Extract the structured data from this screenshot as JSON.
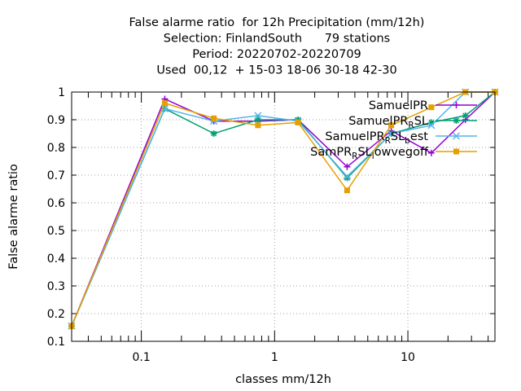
{
  "chart_data": {
    "type": "line",
    "title_lines": [
      "False alarme ratio  for 12h Precipitation (mm/12h)",
      "Selection: FinlandSouth      79 stations",
      "Period: 20220702-20220709",
      "Used  00,12  + 15-03 18-06 30-18 42-30"
    ],
    "xlabel": "classes mm/12h",
    "ylabel": "False alarme ratio",
    "x_scale": "log",
    "xlim": [
      0.03,
      45
    ],
    "ylim": [
      0.1,
      1.0
    ],
    "x_ticks": [
      {
        "v": 0.1,
        "label": "0.1"
      },
      {
        "v": 1,
        "label": "1"
      },
      {
        "v": 10,
        "label": "10"
      }
    ],
    "y_ticks": [
      {
        "v": 0.1,
        "label": "0.1"
      },
      {
        "v": 0.2,
        "label": "0.2"
      },
      {
        "v": 0.3,
        "label": "0.3"
      },
      {
        "v": 0.4,
        "label": "0.4"
      },
      {
        "v": 0.5,
        "label": "0.5"
      },
      {
        "v": 0.6,
        "label": "0.6"
      },
      {
        "v": 0.7,
        "label": "0.7"
      },
      {
        "v": 0.8,
        "label": "0.8"
      },
      {
        "v": 0.9,
        "label": "0.9"
      },
      {
        "v": 1.0,
        "label": "1"
      }
    ],
    "grid": true,
    "legend_position": "top-right",
    "series": [
      {
        "name": "SamuelPR",
        "name_parts": [
          {
            "t": "SamuelPR"
          }
        ],
        "color": "#9400d3",
        "marker": "plus",
        "x": [
          0.03,
          0.15,
          0.35,
          0.75,
          1.5,
          3.5,
          7.5,
          15,
          27,
          45
        ],
        "y": [
          0.155,
          0.975,
          0.895,
          0.895,
          0.9,
          0.73,
          0.86,
          0.78,
          0.9,
          1.0
        ]
      },
      {
        "name": "SamuelPR_R_SL",
        "name_parts": [
          {
            "t": "SamuelPR"
          },
          {
            "t": "R",
            "sub": true
          },
          {
            "t": "SL"
          }
        ],
        "color": "#009e73",
        "marker": "star",
        "x": [
          0.03,
          0.15,
          0.35,
          0.75,
          1.5,
          3.5,
          7.5,
          15,
          27,
          45
        ],
        "y": [
          0.155,
          0.94,
          0.85,
          0.9,
          0.9,
          0.69,
          0.85,
          0.89,
          0.915,
          1.0
        ]
      },
      {
        "name": "SamuelPR_R_SL_best",
        "name_parts": [
          {
            "t": "SamuelPR"
          },
          {
            "t": "R",
            "sub": true
          },
          {
            "t": "SL"
          },
          {
            "t": "b",
            "sub": true
          },
          {
            "t": "est"
          }
        ],
        "color": "#56b4e9",
        "marker": "x",
        "x": [
          0.03,
          0.15,
          0.35,
          0.75,
          1.5,
          3.5,
          7.5,
          15,
          27,
          45
        ],
        "y": [
          0.155,
          0.94,
          0.895,
          0.915,
          0.895,
          0.695,
          0.85,
          0.88,
          1.0,
          1.0
        ]
      },
      {
        "name": "SamPR_R_SL_lowvegoff",
        "name_parts": [
          {
            "t": "SamPR"
          },
          {
            "t": "R",
            "sub": true
          },
          {
            "t": "SL"
          },
          {
            "t": "l",
            "sub": true
          },
          {
            "t": "owvegoff"
          }
        ],
        "color": "#e69f00",
        "marker": "box",
        "x": [
          0.03,
          0.15,
          0.35,
          0.75,
          1.5,
          3.5,
          7.5,
          15,
          27,
          45
        ],
        "y": [
          0.155,
          0.96,
          0.905,
          0.88,
          0.89,
          0.645,
          0.88,
          0.945,
          1.0,
          1.0
        ]
      }
    ]
  }
}
